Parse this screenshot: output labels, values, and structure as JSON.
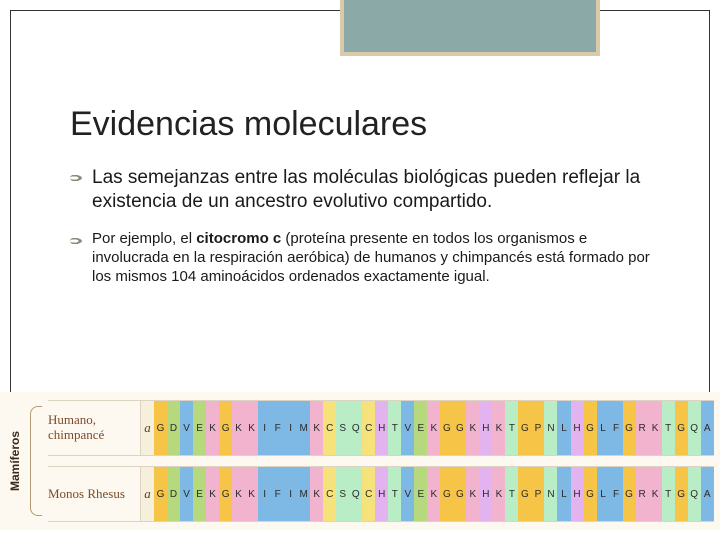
{
  "decor": {
    "accent_color": "#8aa9a7",
    "frame_color": "#d9cba9"
  },
  "title": "Evidencias moleculares",
  "bullets": [
    {
      "level": 1,
      "runs": [
        {
          "text": "Las semejanzas entre las moléculas biológicas pueden reflejar la existencia de un ancestro evolutivo compartido.",
          "bold": false
        }
      ]
    },
    {
      "level": 2,
      "runs": [
        {
          "text": "Por ejemplo, el ",
          "bold": false
        },
        {
          "text": "citocromo c",
          "bold": true
        },
        {
          "text": " (proteína presente en todos los organismos e involucrada en la respiración aeróbica) de humanos y chimpancés está formado por los mismos 104 aminoácidos ordenados exactamente igual.",
          "bold": false
        }
      ]
    }
  ],
  "figure": {
    "ylabel": "Mamíferos",
    "prefix": "a",
    "background": "#fdf9f0",
    "aa_colors": {
      "G": "#f6c447",
      "D": "#b7d97d",
      "V": "#7eb8e4",
      "E": "#b7d97d",
      "K": "#f2b3cf",
      "C": "#f6e27a",
      "I": "#7eb8e4",
      "F": "#7eb8e4",
      "M": "#7eb8e4",
      "S": "#b9edc5",
      "Q": "#b9edc5",
      "H": "#e3b3f0",
      "T": "#b9edc5",
      "N": "#b9edc5",
      "L": "#7eb8e4",
      "R": "#f2b3cf",
      "A": "#7eb8e4",
      "P": "#f6c447",
      "W": "#7eb8e4",
      "Y": "#b9edc5"
    },
    "rows": [
      {
        "label": "Humano, chimpancé",
        "seq": "GDVEKGKKIFIMKCSQCHTVEKGGKHKTGPNLHGLFGRKTGQA"
      },
      {
        "label": "Monos Rhesus",
        "seq": "GDVEKGKKIFIMKCSQCHTVEKGGKHKTGPNLHGLFGRKTGQA"
      }
    ]
  }
}
